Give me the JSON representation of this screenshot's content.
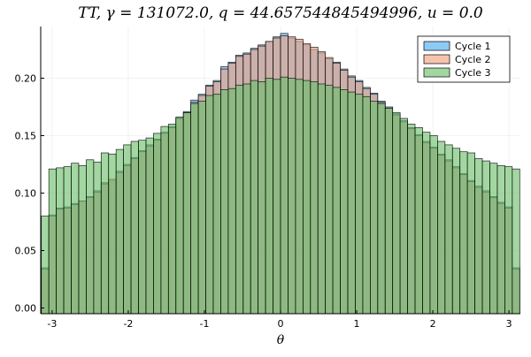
{
  "chart_data": {
    "type": "bar",
    "title": "TT, γ = 131072.0, q = 44.657544845494996, u = 0.0",
    "xlabel": "θ",
    "ylabel": "",
    "xlim": [
      -3.15,
      3.15
    ],
    "ylim": [
      -0.005,
      0.245
    ],
    "xticks": [
      -3,
      -2,
      -1,
      0,
      1,
      2,
      3
    ],
    "yticks": [
      0.0,
      0.05,
      0.1,
      0.15,
      0.2
    ],
    "ytick_labels": [
      "0.00",
      "0.05",
      "0.10",
      "0.15",
      "0.20"
    ],
    "xtick_labels": [
      "-3",
      "-2",
      "-1",
      "0",
      "1",
      "2",
      "3"
    ],
    "grid": true,
    "legend_position": "top-right",
    "bins": {
      "start": -3.14159,
      "end": 3.14159,
      "count": 64
    },
    "series": [
      {
        "name": "Cycle 1",
        "color": "#4aa9f0",
        "values": [
          0.035,
          0.081,
          0.087,
          0.088,
          0.091,
          0.093,
          0.097,
          0.102,
          0.109,
          0.111,
          0.119,
          0.125,
          0.131,
          0.137,
          0.142,
          0.147,
          0.153,
          0.158,
          0.166,
          0.171,
          0.181,
          0.186,
          0.194,
          0.198,
          0.21,
          0.214,
          0.22,
          0.222,
          0.226,
          0.229,
          0.232,
          0.236,
          0.239,
          0.235,
          0.232,
          0.229,
          0.225,
          0.222,
          0.217,
          0.214,
          0.208,
          0.202,
          0.198,
          0.192,
          0.187,
          0.18,
          0.175,
          0.169,
          0.163,
          0.157,
          0.151,
          0.145,
          0.14,
          0.134,
          0.129,
          0.123,
          0.117,
          0.111,
          0.106,
          0.102,
          0.097,
          0.092,
          0.088,
          0.035
        ]
      },
      {
        "name": "Cycle 2",
        "color": "#f0a07c",
        "values": [
          0.034,
          0.08,
          0.086,
          0.087,
          0.09,
          0.093,
          0.096,
          0.101,
          0.108,
          0.112,
          0.118,
          0.124,
          0.13,
          0.136,
          0.141,
          0.146,
          0.152,
          0.157,
          0.165,
          0.17,
          0.179,
          0.185,
          0.193,
          0.197,
          0.208,
          0.213,
          0.219,
          0.221,
          0.225,
          0.228,
          0.232,
          0.235,
          0.237,
          0.236,
          0.234,
          0.23,
          0.227,
          0.223,
          0.218,
          0.213,
          0.207,
          0.201,
          0.197,
          0.191,
          0.186,
          0.179,
          0.174,
          0.168,
          0.162,
          0.156,
          0.15,
          0.144,
          0.139,
          0.133,
          0.128,
          0.122,
          0.116,
          0.11,
          0.105,
          0.101,
          0.096,
          0.091,
          0.087,
          0.034
        ]
      },
      {
        "name": "Cycle 3",
        "color": "#6abf69",
        "values": [
          0.08,
          0.121,
          0.122,
          0.123,
          0.126,
          0.124,
          0.129,
          0.127,
          0.135,
          0.134,
          0.138,
          0.142,
          0.145,
          0.146,
          0.148,
          0.152,
          0.158,
          0.16,
          0.166,
          0.17,
          0.178,
          0.18,
          0.185,
          0.186,
          0.19,
          0.191,
          0.194,
          0.195,
          0.198,
          0.197,
          0.2,
          0.199,
          0.201,
          0.2,
          0.199,
          0.198,
          0.197,
          0.195,
          0.194,
          0.192,
          0.19,
          0.188,
          0.186,
          0.184,
          0.18,
          0.178,
          0.174,
          0.17,
          0.165,
          0.16,
          0.157,
          0.153,
          0.15,
          0.145,
          0.142,
          0.139,
          0.136,
          0.135,
          0.13,
          0.128,
          0.126,
          0.124,
          0.123,
          0.121
        ]
      }
    ]
  }
}
